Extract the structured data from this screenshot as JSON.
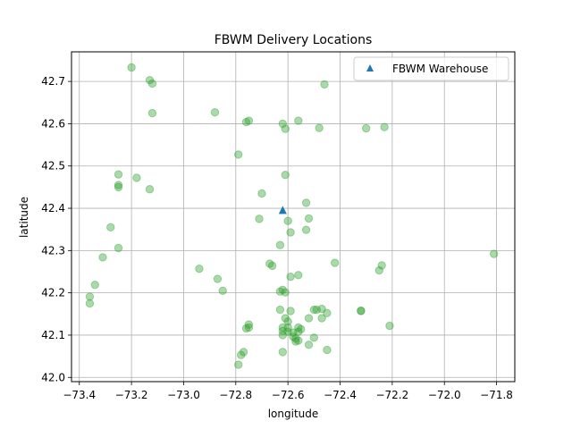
{
  "chart_data": {
    "type": "scatter",
    "title": "FBWM Delivery Locations",
    "xlabel": "longitude",
    "ylabel": "latitude",
    "xlim": [
      -73.43,
      -71.73
    ],
    "ylim": [
      41.99,
      42.77
    ],
    "xticks": [
      -73.4,
      -73.2,
      -73.0,
      -72.8,
      -72.6,
      -72.4,
      -72.2,
      -72.0,
      -71.8
    ],
    "xtick_labels": [
      "−73.4",
      "−73.2",
      "−73.0",
      "−72.8",
      "−72.6",
      "−72.4",
      "−72.2",
      "−72.0",
      "−71.8"
    ],
    "yticks": [
      42.0,
      42.1,
      42.2,
      42.3,
      42.4,
      42.5,
      42.6,
      42.7
    ],
    "ytick_labels": [
      "42.0",
      "42.1",
      "42.2",
      "42.3",
      "42.4",
      "42.5",
      "42.6",
      "42.7"
    ],
    "grid": true,
    "legend": {
      "position": "top-right",
      "entries": [
        "FBWM Warehouse"
      ]
    },
    "colors": {
      "deliveries": "#2ca02c",
      "warehouse": "#1f77b4",
      "grid": "#b0b0b0"
    },
    "warehouse": {
      "name": "FBWM Warehouse",
      "x": -72.62,
      "y": 42.395
    },
    "deliveries": [
      [
        -73.2,
        42.733
      ],
      [
        -73.13,
        42.703
      ],
      [
        -73.12,
        42.695
      ],
      [
        -73.12,
        42.625
      ],
      [
        -72.88,
        42.627
      ],
      [
        -72.75,
        42.607
      ],
      [
        -72.76,
        42.604
      ],
      [
        -72.62,
        42.6
      ],
      [
        -72.61,
        42.588
      ],
      [
        -72.56,
        42.607
      ],
      [
        -72.48,
        42.59
      ],
      [
        -72.46,
        42.693
      ],
      [
        -72.3,
        42.589
      ],
      [
        -72.23,
        42.592
      ],
      [
        -72.79,
        42.527
      ],
      [
        -73.25,
        42.48
      ],
      [
        -73.18,
        42.472
      ],
      [
        -73.25,
        42.455
      ],
      [
        -73.25,
        42.45
      ],
      [
        -73.13,
        42.445
      ],
      [
        -72.7,
        42.435
      ],
      [
        -72.61,
        42.479
      ],
      [
        -72.53,
        42.413
      ],
      [
        -72.71,
        42.375
      ],
      [
        -72.6,
        42.37
      ],
      [
        -72.52,
        42.376
      ],
      [
        -72.53,
        42.349
      ],
      [
        -72.59,
        42.343
      ],
      [
        -73.28,
        42.355
      ],
      [
        -72.63,
        42.313
      ],
      [
        -73.25,
        42.306
      ],
      [
        -73.31,
        42.284
      ],
      [
        -72.42,
        42.271
      ],
      [
        -72.67,
        42.269
      ],
      [
        -72.66,
        42.264
      ],
      [
        -72.24,
        42.265
      ],
      [
        -72.25,
        42.253
      ],
      [
        -71.81,
        42.292
      ],
      [
        -72.94,
        42.257
      ],
      [
        -72.56,
        42.242
      ],
      [
        -72.59,
        42.238
      ],
      [
        -72.87,
        42.233
      ],
      [
        -73.34,
        42.219
      ],
      [
        -72.85,
        42.205
      ],
      [
        -72.63,
        42.203
      ],
      [
        -72.62,
        42.207
      ],
      [
        -72.61,
        42.201
      ],
      [
        -73.36,
        42.191
      ],
      [
        -73.36,
        42.175
      ],
      [
        -72.5,
        42.16
      ],
      [
        -72.49,
        42.16
      ],
      [
        -72.47,
        42.162
      ],
      [
        -72.32,
        42.158
      ],
      [
        -72.32,
        42.157
      ],
      [
        -72.63,
        42.16
      ],
      [
        -72.59,
        42.157
      ],
      [
        -72.45,
        42.152
      ],
      [
        -72.61,
        42.14
      ],
      [
        -72.52,
        42.14
      ],
      [
        -72.47,
        42.14
      ],
      [
        -72.6,
        42.132
      ],
      [
        -72.21,
        42.122
      ],
      [
        -72.75,
        42.125
      ],
      [
        -72.75,
        42.118
      ],
      [
        -72.76,
        42.116
      ],
      [
        -72.62,
        42.118
      ],
      [
        -72.6,
        42.118
      ],
      [
        -72.56,
        42.118
      ],
      [
        -72.62,
        42.11
      ],
      [
        -72.6,
        42.108
      ],
      [
        -72.58,
        42.106
      ],
      [
        -72.56,
        42.108
      ],
      [
        -72.55,
        42.114
      ],
      [
        -72.62,
        42.1
      ],
      [
        -72.58,
        42.096
      ],
      [
        -72.57,
        42.092
      ],
      [
        -72.5,
        42.094
      ],
      [
        -72.57,
        42.085
      ],
      [
        -72.56,
        42.087
      ],
      [
        -72.52,
        42.077
      ],
      [
        -72.77,
        42.06
      ],
      [
        -72.78,
        42.053
      ],
      [
        -72.62,
        42.06
      ],
      [
        -72.45,
        42.065
      ],
      [
        -72.79,
        42.03
      ]
    ]
  }
}
